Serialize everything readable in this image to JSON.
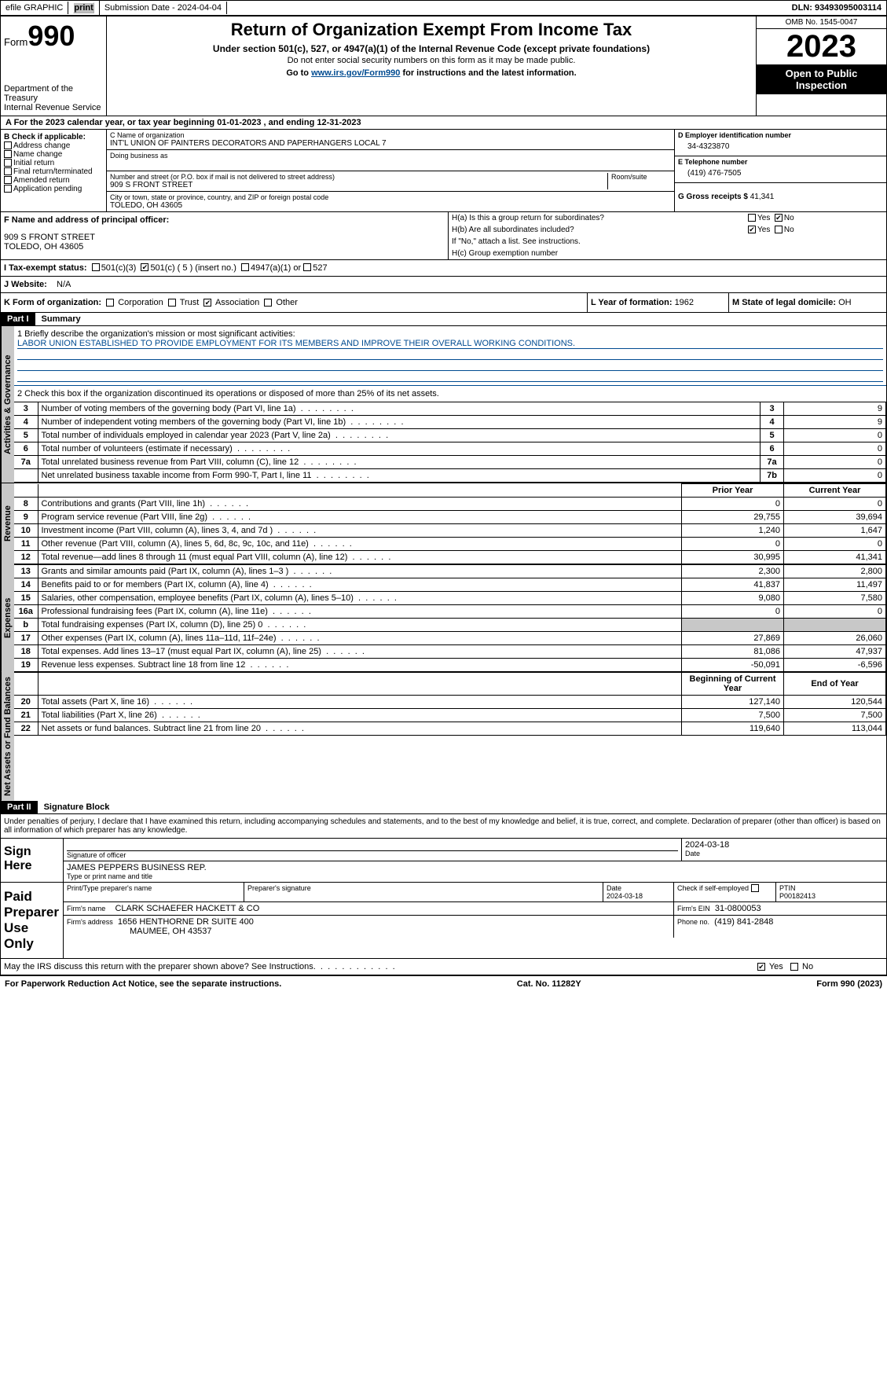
{
  "topbar": {
    "efile": "efile GRAPHIC",
    "print": "print",
    "subdate_label": "Submission Date - 2024-04-04",
    "dln": "DLN: 93493095003114"
  },
  "header": {
    "form_word": "Form",
    "form_num": "990",
    "dept": "Department of the Treasury",
    "irs": "Internal Revenue Service",
    "title": "Return of Organization Exempt From Income Tax",
    "subtitle": "Under section 501(c), 527, or 4947(a)(1) of the Internal Revenue Code (except private foundations)",
    "ssn_note": "Do not enter social security numbers on this form as it may be made public.",
    "goto_pre": "Go to ",
    "goto_link": "www.irs.gov/Form990",
    "goto_post": " for instructions and the latest information.",
    "omb": "OMB No. 1545-0047",
    "year": "2023",
    "inspect": "Open to Public Inspection"
  },
  "rowA": "A For the 2023 calendar year, or tax year beginning 01-01-2023    , and ending 12-31-2023",
  "boxB": {
    "label": "B Check if applicable:",
    "items": [
      "Address change",
      "Name change",
      "Initial return",
      "Final return/terminated",
      "Amended return",
      "Application pending"
    ]
  },
  "boxC": {
    "name_label": "C Name of organization",
    "name": "INT'L UNION OF PAINTERS DECORATORS AND PAPERHANGERS LOCAL 7",
    "dba_label": "Doing business as",
    "addr_label": "Number and street (or P.O. box if mail is not delivered to street address)",
    "room_label": "Room/suite",
    "addr": "909 S FRONT STREET",
    "city_label": "City or town, state or province, country, and ZIP or foreign postal code",
    "city": "TOLEDO, OH  43605"
  },
  "boxD": {
    "label": "D Employer identification number",
    "val": "34-4323870"
  },
  "boxE": {
    "label": "E Telephone number",
    "val": "(419) 476-7505"
  },
  "boxG": {
    "label": "G Gross receipts $ ",
    "val": "41,341"
  },
  "boxF": {
    "label": "F  Name and address of principal officer:",
    "addr1": "909 S FRONT STREET",
    "addr2": "TOLEDO, OH  43605"
  },
  "boxH": {
    "a": "H(a)  Is this a group return for subordinates?",
    "b": "H(b)  Are all subordinates included?",
    "b_note": "If \"No,\" attach a list. See instructions.",
    "c": "H(c)  Group exemption number",
    "yes": "Yes",
    "no": "No"
  },
  "boxI": {
    "label": "I   Tax-exempt status:",
    "o1": "501(c)(3)",
    "o2": "501(c) ( 5 ) (insert no.)",
    "o3": "4947(a)(1) or",
    "o4": "527"
  },
  "boxJ": {
    "label": "J   Website:",
    "val": "N/A"
  },
  "boxK": {
    "label": "K Form of organization:",
    "opts": [
      "Corporation",
      "Trust",
      "Association",
      "Other"
    ]
  },
  "boxL": {
    "label": "L Year of formation: ",
    "val": "1962"
  },
  "boxM": {
    "label": "M State of legal domicile: ",
    "val": "OH"
  },
  "part1": {
    "hdr": "Part I",
    "title": "Summary",
    "line1_label": "1   Briefly describe the organization's mission or most significant activities:",
    "line1_val": "LABOR UNION ESTABLISHED TO PROVIDE EMPLOYMENT FOR ITS MEMBERS AND IMPROVE THEIR OVERALL WORKING CONDITIONS.",
    "line2": "2   Check this box      if the organization discontinued its operations or disposed of more than 25% of its net assets.",
    "gov_tab": "Activities & Governance",
    "rev_tab": "Revenue",
    "exp_tab": "Expenses",
    "na_tab": "Net Assets or Fund Balances",
    "prior": "Prior Year",
    "current": "Current Year",
    "begin": "Beginning of Current Year",
    "end": "End of Year",
    "gov_rows": [
      {
        "n": "3",
        "d": "Number of voting members of the governing body (Part VI, line 1a)",
        "ln": "3",
        "v": "9"
      },
      {
        "n": "4",
        "d": "Number of independent voting members of the governing body (Part VI, line 1b)",
        "ln": "4",
        "v": "9"
      },
      {
        "n": "5",
        "d": "Total number of individuals employed in calendar year 2023 (Part V, line 2a)",
        "ln": "5",
        "v": "0"
      },
      {
        "n": "6",
        "d": "Total number of volunteers (estimate if necessary)",
        "ln": "6",
        "v": "0"
      },
      {
        "n": "7a",
        "d": "Total unrelated business revenue from Part VIII, column (C), line 12",
        "ln": "7a",
        "v": "0"
      },
      {
        "n": "",
        "d": "Net unrelated business taxable income from Form 990-T, Part I, line 11",
        "ln": "7b",
        "v": "0"
      }
    ],
    "rev_rows": [
      {
        "n": "8",
        "d": "Contributions and grants (Part VIII, line 1h)",
        "p": "0",
        "c": "0"
      },
      {
        "n": "9",
        "d": "Program service revenue (Part VIII, line 2g)",
        "p": "29,755",
        "c": "39,694"
      },
      {
        "n": "10",
        "d": "Investment income (Part VIII, column (A), lines 3, 4, and 7d )",
        "p": "1,240",
        "c": "1,647"
      },
      {
        "n": "11",
        "d": "Other revenue (Part VIII, column (A), lines 5, 6d, 8c, 9c, 10c, and 11e)",
        "p": "0",
        "c": "0"
      },
      {
        "n": "12",
        "d": "Total revenue—add lines 8 through 11 (must equal Part VIII, column (A), line 12)",
        "p": "30,995",
        "c": "41,341"
      }
    ],
    "exp_rows": [
      {
        "n": "13",
        "d": "Grants and similar amounts paid (Part IX, column (A), lines 1–3 )",
        "p": "2,300",
        "c": "2,800"
      },
      {
        "n": "14",
        "d": "Benefits paid to or for members (Part IX, column (A), line 4)",
        "p": "41,837",
        "c": "11,497"
      },
      {
        "n": "15",
        "d": "Salaries, other compensation, employee benefits (Part IX, column (A), lines 5–10)",
        "p": "9,080",
        "c": "7,580"
      },
      {
        "n": "16a",
        "d": "Professional fundraising fees (Part IX, column (A), line 11e)",
        "p": "0",
        "c": "0"
      },
      {
        "n": "b",
        "d": "Total fundraising expenses (Part IX, column (D), line 25) 0",
        "p": "",
        "c": "",
        "shade": true,
        "small": true
      },
      {
        "n": "17",
        "d": "Other expenses (Part IX, column (A), lines 11a–11d, 11f–24e)",
        "p": "27,869",
        "c": "26,060"
      },
      {
        "n": "18",
        "d": "Total expenses. Add lines 13–17 (must equal Part IX, column (A), line 25)",
        "p": "81,086",
        "c": "47,937"
      },
      {
        "n": "19",
        "d": "Revenue less expenses. Subtract line 18 from line 12",
        "p": "-50,091",
        "c": "-6,596"
      }
    ],
    "na_rows": [
      {
        "n": "20",
        "d": "Total assets (Part X, line 16)",
        "p": "127,140",
        "c": "120,544"
      },
      {
        "n": "21",
        "d": "Total liabilities (Part X, line 26)",
        "p": "7,500",
        "c": "7,500"
      },
      {
        "n": "22",
        "d": "Net assets or fund balances. Subtract line 21 from line 20",
        "p": "119,640",
        "c": "113,044"
      }
    ]
  },
  "part2": {
    "hdr": "Part II",
    "title": "Signature Block",
    "penalty": "Under penalties of perjury, I declare that I have examined this return, including accompanying schedules and statements, and to the best of my knowledge and belief, it is true, correct, and complete. Declaration of preparer (other than officer) is based on all information of which preparer has any knowledge."
  },
  "sign": {
    "here": "Sign Here",
    "sig_label": "Signature of officer",
    "date_label": "Date",
    "date": "2024-03-18",
    "officer": "JAMES PEPPERS  BUSINESS REP.",
    "type_label": "Type or print name and title"
  },
  "paid": {
    "label": "Paid Preparer Use Only",
    "name_label": "Print/Type preparer's name",
    "sig_label": "Preparer's signature",
    "date_label": "Date",
    "date": "2024-03-18",
    "check_label": "Check         if self-employed",
    "ptin_label": "PTIN",
    "ptin": "P00182413",
    "firm_name_label": "Firm's name",
    "firm_name": "CLARK SCHAEFER HACKETT & CO",
    "firm_ein_label": "Firm's EIN",
    "firm_ein": "31-0800053",
    "firm_addr_label": "Firm's address",
    "firm_addr1": "1656 HENTHORNE DR SUITE 400",
    "firm_addr2": "MAUMEE, OH  43537",
    "phone_label": "Phone no.",
    "phone": "(419) 841-2848"
  },
  "discuss": {
    "q": "May the IRS discuss this return with the preparer shown above? See Instructions.",
    "yes": "Yes",
    "no": "No"
  },
  "footer": {
    "pra": "For Paperwork Reduction Act Notice, see the separate instructions.",
    "cat": "Cat. No. 11282Y",
    "form": "Form 990 (2023)"
  }
}
